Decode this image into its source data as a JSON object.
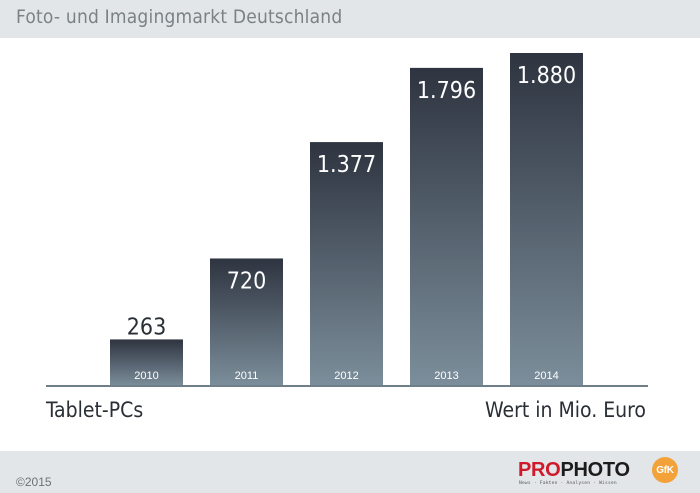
{
  "header": {
    "title": "Foto- und Imagingmarkt Deutschland"
  },
  "chart_data": {
    "type": "bar",
    "categories": [
      "2010",
      "2011",
      "2012",
      "2013",
      "2014"
    ],
    "values": [
      263,
      720,
      1377,
      1796,
      1880
    ],
    "value_labels": [
      "263",
      "720",
      "1.377",
      "1.796",
      "1.880"
    ],
    "xlabel": "Tablet-PCs",
    "ylabel": "Wert in Mio. Euro",
    "ylim": [
      0,
      1880
    ],
    "grid": false,
    "legend": "none",
    "colors": {
      "bar_top": "#2e3440",
      "bar_bottom": "#7c8e9b",
      "axis": "#6f7f8a",
      "label": "#2a2f36"
    }
  },
  "footer": {
    "copyright": "©2015",
    "logo": {
      "pro": "PRO",
      "photo": "PHOTO",
      "tagline": "News · Fakten · Analysen · Wissen"
    },
    "gfk_logo": "GfK"
  }
}
